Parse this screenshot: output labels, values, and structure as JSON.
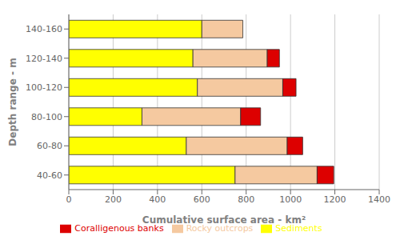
{
  "chart_data": {
    "type": "bar",
    "orientation": "horizontal",
    "stacked": true,
    "categories": [
      "40-60",
      "60-80",
      "80-100",
      "100-120",
      "120-140",
      "140-160"
    ],
    "series": [
      {
        "name": "Sediments",
        "color": "#ffff00",
        "values": [
          750,
          530,
          330,
          580,
          560,
          600
        ]
      },
      {
        "name": "Rocky outcrops",
        "color": "#f5c9a0",
        "values": [
          370,
          455,
          445,
          385,
          335,
          185
        ]
      },
      {
        "name": "Coralligenous banks",
        "color": "#dd0000",
        "values": [
          75,
          70,
          90,
          60,
          55,
          0
        ]
      }
    ],
    "xlabel": "Cumulative surface area  - km²",
    "ylabel": "Depth range - m",
    "xlim": [
      0,
      1400
    ],
    "xticks": [
      0,
      200,
      400,
      600,
      800,
      1000,
      1200,
      1400
    ],
    "grid": true,
    "legend": "bottom"
  }
}
